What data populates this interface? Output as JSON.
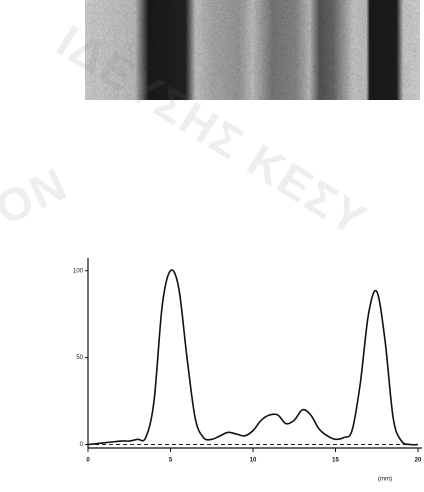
{
  "chart_data": {
    "type": "line",
    "x_label": "(mm)",
    "watermark": [
      "ΙΔΕΥΣΗΣ ΚΕΣΥ",
      "ON"
    ],
    "x": [
      0,
      1,
      2,
      2.5,
      3,
      3.5,
      4,
      4.5,
      5,
      5.5,
      6,
      6.5,
      7,
      7.5,
      8,
      8.5,
      9,
      9.5,
      10,
      10.5,
      11,
      11.5,
      12,
      12.5,
      13,
      13.5,
      14,
      14.5,
      15,
      15.5,
      16,
      16.5,
      17,
      17.5,
      18,
      18.5,
      19,
      19.5,
      20
    ],
    "series": [
      {
        "color": "#111111",
        "values": [
          0,
          1,
          2,
          2,
          3,
          4,
          25,
          80,
          100,
          90,
          50,
          15,
          4,
          3,
          5,
          7,
          6,
          5,
          8,
          14,
          17,
          17,
          12,
          14,
          20,
          17,
          9,
          5,
          3,
          4,
          8,
          35,
          75,
          88,
          60,
          15,
          2,
          0,
          0
        ]
      }
    ],
    "reference_line": 0,
    "xlim": [
      0,
      20
    ],
    "ylim": [
      -2,
      105
    ],
    "xticks": [
      0,
      5,
      10,
      15,
      20
    ],
    "yticks": [
      0,
      50,
      100
    ]
  }
}
